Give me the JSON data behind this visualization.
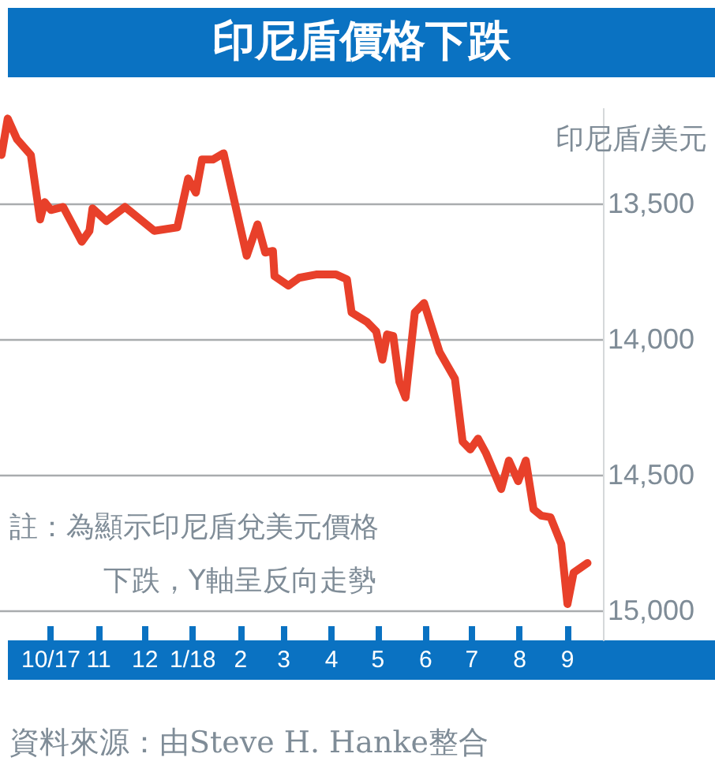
{
  "chart_data": {
    "type": "line",
    "title": "印尼盾價格下跌",
    "ylabel": "印尼盾/美元",
    "annotations": [
      "註：為顯示印尼盾兌美元價格下跌，Y軸呈反向走勢",
      "資料來源：由Steve H. Hanke整合"
    ],
    "x": [
      "2017-08-30",
      "2017-09-03",
      "2017-09-09",
      "2017-09-18",
      "2017-09-24",
      "2017-09-27",
      "2017-10-01",
      "2017-10-09",
      "2017-10-21",
      "2017-10-26",
      "2017-10-28",
      "2017-11-06",
      "2017-11-18",
      "2017-12-07",
      "2017-12-22",
      "2017-12-29",
      "2018-01-03",
      "2018-01-07",
      "2018-01-14",
      "2018-01-21",
      "2018-02-05",
      "2018-02-12",
      "2018-02-17",
      "2018-02-22",
      "2018-02-23",
      "2018-03-04",
      "2018-03-11",
      "2018-03-22",
      "2018-04-04",
      "2018-04-11",
      "2018-04-14",
      "2018-04-24",
      "2018-04-30",
      "2018-05-04",
      "2018-05-07",
      "2018-05-11",
      "2018-05-15",
      "2018-05-19",
      "2018-05-25",
      "2018-05-31",
      "2018-06-10",
      "2018-06-20",
      "2018-06-25",
      "2018-06-30",
      "2018-07-05",
      "2018-07-10",
      "2018-07-20",
      "2018-07-25",
      "2018-07-31",
      "2018-08-05",
      "2018-08-10",
      "2018-08-15",
      "2018-08-21",
      "2018-08-28",
      "2018-09-01",
      "2018-09-05",
      "2018-09-14"
    ],
    "series": [
      {
        "color": "#e8402a",
        "values": [
          13320,
          13186,
          13262,
          13320,
          13558,
          13494,
          13523,
          13512,
          13640,
          13600,
          13517,
          13564,
          13512,
          13600,
          13587,
          13407,
          13459,
          13337,
          13337,
          13314,
          13692,
          13576,
          13680,
          13674,
          13767,
          13802,
          13773,
          13761,
          13761,
          13779,
          13901,
          13936,
          13971,
          14075,
          13982,
          13988,
          14157,
          14215,
          13901,
          13866,
          14046,
          14145,
          14377,
          14406,
          14366,
          14418,
          14552,
          14447,
          14523,
          14447,
          14627,
          14650,
          14656,
          14755,
          14976,
          14860,
          14825
        ]
      }
    ],
    "xlim": [
      "2017-08-29",
      "2018-09-24"
    ],
    "xticks": [
      {
        "value": "2017-10-01",
        "label": "10/17"
      },
      {
        "value": "2017-11-01",
        "label": "11"
      },
      {
        "value": "2017-12-01",
        "label": "12"
      },
      {
        "value": "2018-01-01",
        "label": "1/18"
      },
      {
        "value": "2018-02-01",
        "label": "2"
      },
      {
        "value": "2018-03-01",
        "label": "3"
      },
      {
        "value": "2018-04-01",
        "label": "4"
      },
      {
        "value": "2018-05-01",
        "label": "5"
      },
      {
        "value": "2018-06-01",
        "label": "6"
      },
      {
        "value": "2018-07-01",
        "label": "7"
      },
      {
        "value": "2018-08-01",
        "label": "8"
      },
      {
        "value": "2018-09-01",
        "label": "9"
      }
    ],
    "ylim": [
      15110,
      13150
    ],
    "yticks": [
      {
        "value": 13500,
        "label": "13,500"
      },
      {
        "value": 14000,
        "label": "14,000"
      },
      {
        "value": 14500,
        "label": "14,500"
      },
      {
        "value": 15000,
        "label": "15,000"
      }
    ],
    "grid": "y",
    "marker": "none",
    "line_style": "solid"
  }
}
